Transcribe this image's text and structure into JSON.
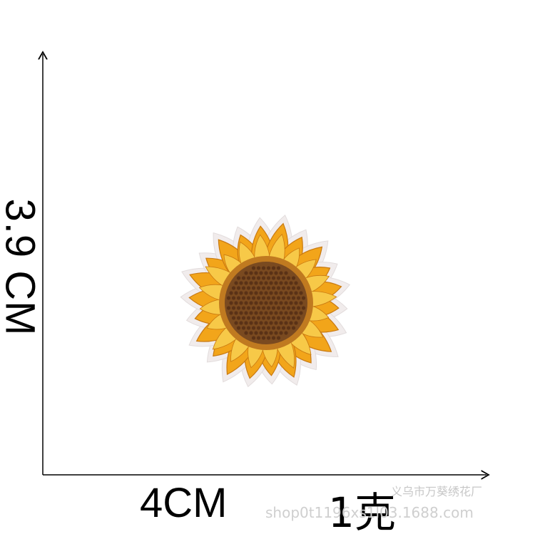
{
  "dimensions": {
    "height": "3.9 CM",
    "width": "4CM"
  },
  "weight": "1克",
  "watermark": {
    "shop_name": "义乌市万葵绣花厂",
    "url": "shop0t1196xs1l03.1688.com"
  },
  "product": {
    "image": "sunflower-embroidered-patch"
  },
  "colors": {
    "petal_outer": "#f2a51a",
    "petal_inner": "#f7c948",
    "petal_stitch": "#c97a12",
    "center_dark": "#5a3216",
    "center_mid": "#7a4a20",
    "center_ring": "#c07a20",
    "backing": "#f1ecec"
  }
}
